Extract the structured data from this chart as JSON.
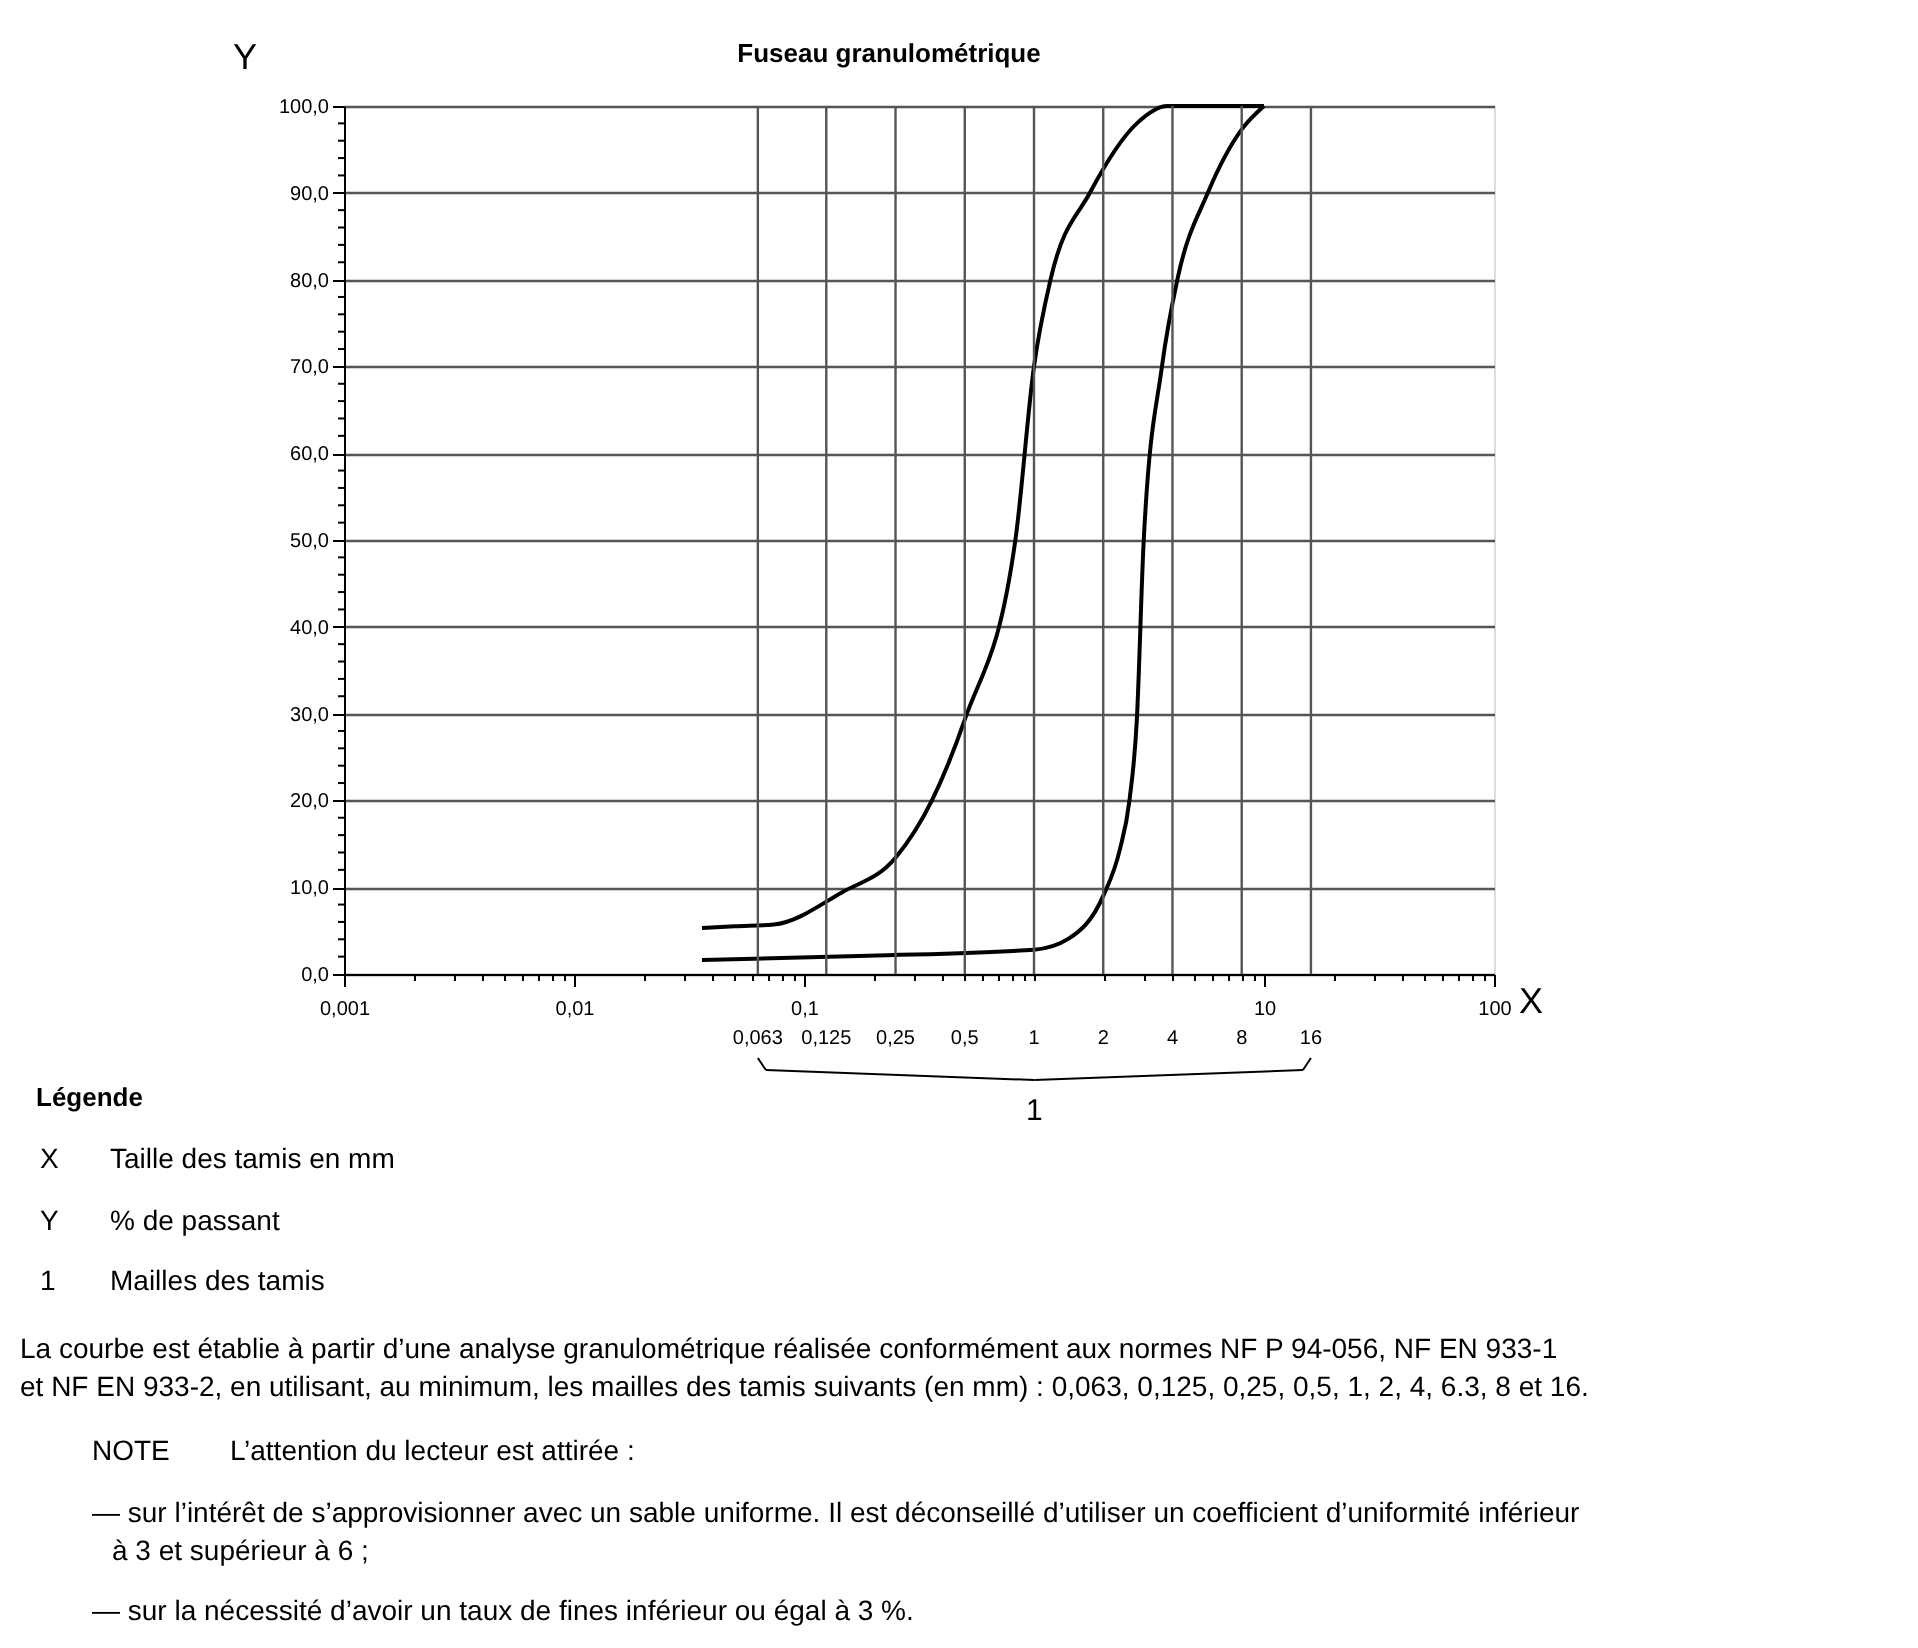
{
  "chart_data": {
    "type": "line",
    "title": "Fuseau granulométrique",
    "xlabel": "X",
    "ylabel": "Y",
    "log": "x",
    "grid": "y",
    "line_style": "solid",
    "xlim": [
      0.001,
      100
    ],
    "ylim": [
      0,
      100
    ],
    "xticks": [
      {
        "value": 0.001,
        "label": "0,001"
      },
      {
        "value": 0.002,
        "label": null
      },
      {
        "value": 0.003,
        "label": null
      },
      {
        "value": 0.004,
        "label": null
      },
      {
        "value": 0.005,
        "label": null
      },
      {
        "value": 0.006,
        "label": null
      },
      {
        "value": 0.007,
        "label": null
      },
      {
        "value": 0.008,
        "label": null
      },
      {
        "value": 0.009,
        "label": null
      },
      {
        "value": 0.01,
        "label": "0,01"
      },
      {
        "value": 0.02,
        "label": null
      },
      {
        "value": 0.03,
        "label": null
      },
      {
        "value": 0.04,
        "label": null
      },
      {
        "value": 0.05,
        "label": null
      },
      {
        "value": 0.06,
        "label": null
      },
      {
        "value": 0.07,
        "label": null
      },
      {
        "value": 0.08,
        "label": null
      },
      {
        "value": 0.09,
        "label": null
      },
      {
        "value": 0.1,
        "label": "0,1"
      },
      {
        "value": 0.2,
        "label": null
      },
      {
        "value": 0.3,
        "label": null
      },
      {
        "value": 0.4,
        "label": null
      },
      {
        "value": 0.5,
        "label": null
      },
      {
        "value": 0.6,
        "label": null
      },
      {
        "value": 0.7,
        "label": null
      },
      {
        "value": 0.8,
        "label": null
      },
      {
        "value": 0.9,
        "label": null
      },
      {
        "value": 1,
        "label": null
      },
      {
        "value": 2,
        "label": null
      },
      {
        "value": 3,
        "label": null
      },
      {
        "value": 4,
        "label": null
      },
      {
        "value": 5,
        "label": null
      },
      {
        "value": 6,
        "label": null
      },
      {
        "value": 7,
        "label": null
      },
      {
        "value": 8,
        "label": null
      },
      {
        "value": 9,
        "label": null
      },
      10,
      {
        "value": 20,
        "label": null
      },
      {
        "value": 30,
        "label": null
      },
      {
        "value": 40,
        "label": null
      },
      {
        "value": 50,
        "label": null
      },
      {
        "value": 60,
        "label": null
      },
      {
        "value": 70,
        "label": null
      },
      {
        "value": 80,
        "label": null
      },
      {
        "value": 90,
        "label": null
      },
      100
    ],
    "yticks": [
      {
        "value": 0,
        "label": "0,0"
      },
      {
        "value": 2,
        "label": null
      },
      {
        "value": 4,
        "label": null
      },
      {
        "value": 6,
        "label": null
      },
      {
        "value": 8,
        "label": null
      },
      {
        "value": 10,
        "label": "10,0"
      },
      {
        "value": 12,
        "label": null
      },
      {
        "value": 14,
        "label": null
      },
      {
        "value": 16,
        "label": null
      },
      {
        "value": 18,
        "label": null
      },
      {
        "value": 20,
        "label": "20,0"
      },
      {
        "value": 22,
        "label": null
      },
      {
        "value": 24,
        "label": null
      },
      {
        "value": 26,
        "label": null
      },
      {
        "value": 28,
        "label": null
      },
      {
        "value": 30,
        "label": "30,0"
      },
      {
        "value": 32,
        "label": null
      },
      {
        "value": 34,
        "label": null
      },
      {
        "value": 36,
        "label": null
      },
      {
        "value": 38,
        "label": null
      },
      {
        "value": 40,
        "label": "40,0"
      },
      {
        "value": 42,
        "label": null
      },
      {
        "value": 44,
        "label": null
      },
      {
        "value": 46,
        "label": null
      },
      {
        "value": 48,
        "label": null
      },
      {
        "value": 50,
        "label": "50,0"
      },
      {
        "value": 52,
        "label": null
      },
      {
        "value": 54,
        "label": null
      },
      {
        "value": 56,
        "label": null
      },
      {
        "value": 58,
        "label": null
      },
      {
        "value": 60,
        "label": "60,0"
      },
      {
        "value": 62,
        "label": null
      },
      {
        "value": 64,
        "label": null
      },
      {
        "value": 66,
        "label": null
      },
      {
        "value": 68,
        "label": null
      },
      {
        "value": 70,
        "label": "70,0"
      },
      {
        "value": 72,
        "label": null
      },
      {
        "value": 74,
        "label": null
      },
      {
        "value": 76,
        "label": null
      },
      {
        "value": 78,
        "label": null
      },
      {
        "value": 80,
        "label": "80,0"
      },
      {
        "value": 82,
        "label": null
      },
      {
        "value": 84,
        "label": null
      },
      {
        "value": 86,
        "label": null
      },
      {
        "value": 88,
        "label": null
      },
      {
        "value": 90,
        "label": "90,0"
      },
      {
        "value": 92,
        "label": null
      },
      {
        "value": 94,
        "label": null
      },
      {
        "value": 96,
        "label": null
      },
      {
        "value": 98,
        "label": null
      },
      {
        "value": 100,
        "label": "100,0"
      }
    ],
    "series": [
      {
        "color": "#000000",
        "x": [
          0.036,
          0.05,
          0.074,
          0.146,
          0.25,
          0.36,
          0.5,
          0.83,
          1.0,
          1.18,
          1.75,
          2.8,
          3.8,
          10
        ],
        "values": [
          5.3,
          5.5,
          5.7,
          9.4,
          13.4,
          20,
          29.3,
          50,
          70,
          80,
          90,
          98,
          100,
          100
        ]
      },
      {
        "color": "#000000",
        "x": [
          0.036,
          0.19,
          1.0,
          1.42,
          2.0,
          2.36,
          2.6,
          2.8,
          3.0,
          3.6,
          4.2,
          5.7,
          8,
          10
        ],
        "values": [
          1.6,
          2.1,
          2.8,
          4.1,
          9.0,
          14.3,
          20,
          29.3,
          50,
          70,
          80,
          90,
          97.3,
          100
        ]
      }
    ],
    "ref_lines": [
      {
        "axis": "x",
        "value": 0.063,
        "label": "0,063",
        "color": "#555555"
      },
      {
        "axis": "x",
        "value": 0.125,
        "label": "0,125",
        "color": "#555555"
      },
      {
        "axis": "x",
        "value": 0.25,
        "label": "0,25",
        "color": "#555555"
      },
      {
        "axis": "x",
        "value": 0.5,
        "label": "0,5",
        "color": "#555555"
      },
      {
        "axis": "x",
        "value": 1,
        "label": "1",
        "color": "#555555"
      },
      {
        "axis": "x",
        "value": 2,
        "label": "2",
        "color": "#555555"
      },
      {
        "axis": "x",
        "value": 4,
        "label": "4",
        "color": "#555555"
      },
      {
        "axis": "x",
        "value": 8,
        "label": "8",
        "color": "#555555"
      },
      {
        "axis": "x",
        "value": 16,
        "label": "16",
        "color": "#555555"
      }
    ],
    "annotations": [
      "1",
      "Légende",
      "X",
      "Taille des tamis en mm",
      "Y",
      "% de passant",
      "1",
      "Mailles des tamis",
      "La courbe est établie à partir d’une analyse granulométrique réalisée conformément aux normes NF P 94-056, NF EN 933-1 et NF EN 933-2, en utilisant, au minimum, les mailles des tamis suivants (en mm) : 0,063, 0,125, 0,25, 0,5, 1, 2, 4, 6.3, 8 et 16.",
      "NOTE",
      "L’attention du lecteur est attirée :",
      "— sur l’intérêt de s’approvisionner avec un sable uniforme. Il est déconseillé d’utiliser un coefficient d’uniformité inférieur à 3 et supérieur à 6 ;",
      "— sur la nécessité d’avoir un taux de fines inférieur ou égal à 3 %."
    ]
  }
}
